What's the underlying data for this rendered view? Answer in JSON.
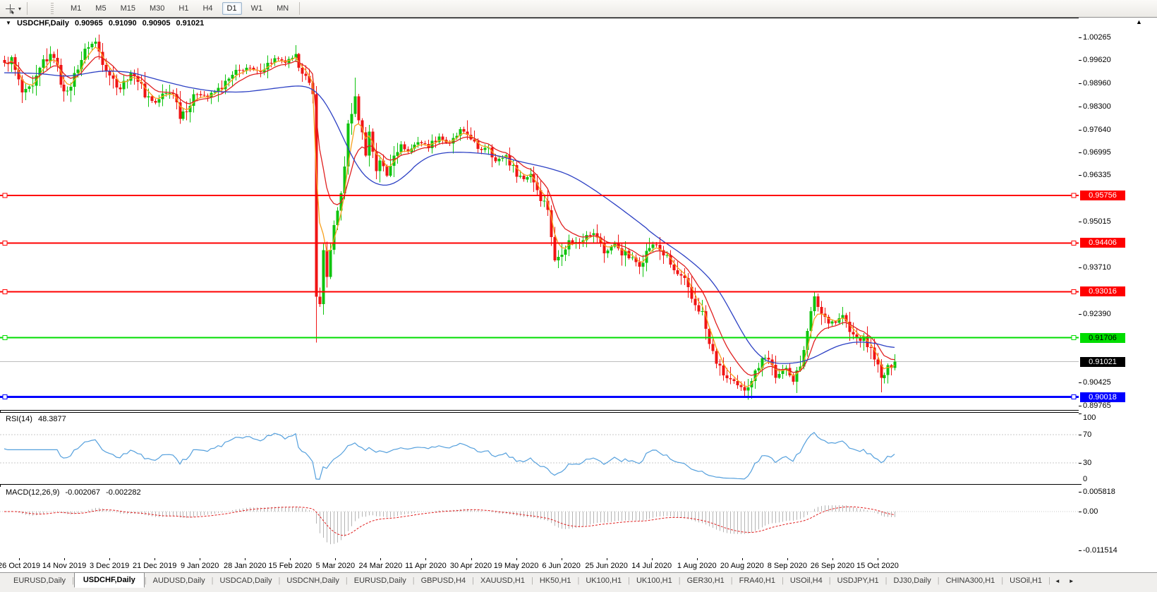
{
  "toolbar": {
    "tool_icon": "crosshair-cursor",
    "caret": "▾",
    "timeframes": [
      {
        "label": "M1"
      },
      {
        "label": "M5"
      },
      {
        "label": "M15"
      },
      {
        "label": "M30"
      },
      {
        "label": "H1"
      },
      {
        "label": "H4"
      },
      {
        "label": "D1",
        "active": true
      },
      {
        "label": "W1"
      },
      {
        "label": "MN"
      }
    ]
  },
  "symbol_info": {
    "symbol": "USDCHF,Daily",
    "open": "0.90965",
    "high": "0.91090",
    "low": "0.90905",
    "close": "0.91021",
    "title_caret": "▼"
  },
  "indicators": {
    "rsi": {
      "label": "RSI(14)",
      "value": "48.3877",
      "levels": [
        70,
        30
      ],
      "axis_labels": [
        {
          "v": 100,
          "label": "100"
        },
        {
          "v": 70,
          "label": "70"
        },
        {
          "v": 30,
          "label": "30"
        },
        {
          "v": 0,
          "label": "0"
        }
      ]
    },
    "macd": {
      "label": "MACD(12,26,9)",
      "macd_value": "-0.002067",
      "signal_value": "-0.002282",
      "axis_labels": [
        {
          "v": 0.005818,
          "label": "0.005818"
        },
        {
          "v": 0,
          "label": "0.00"
        },
        {
          "v": -0.011514,
          "label": "-0.011514"
        }
      ]
    }
  },
  "chart_data": {
    "type": "candlestick",
    "symbol": "USDCHF",
    "timeframe": "Daily",
    "grid": false,
    "x_dates": [
      "26 Oct 2019",
      "14 Nov 2019",
      "3 Dec 2019",
      "21 Dec 2019",
      "9 Jan 2020",
      "28 Jan 2020",
      "15 Feb 2020",
      "5 Mar 2020",
      "24 Mar 2020",
      "11 Apr 2020",
      "30 Apr 2020",
      "19 May 2020",
      "6 Jun 2020",
      "25 Jun 2020",
      "14 Jul 2020",
      "1 Aug 2020",
      "20 Aug 2020",
      "8 Sep 2020",
      "26 Sep 2020",
      "15 Oct 2020"
    ],
    "price_range": {
      "max": 1.00808,
      "min": 0.89647
    },
    "price_axis_ticks": [
      {
        "v": 1.00265,
        "label": "1.00265"
      },
      {
        "v": 0.9962,
        "label": "0.99620"
      },
      {
        "v": 0.9896,
        "label": "0.98960"
      },
      {
        "v": 0.983,
        "label": "0.98300"
      },
      {
        "v": 0.9764,
        "label": "0.97640"
      },
      {
        "v": 0.96995,
        "label": "0.96995"
      },
      {
        "v": 0.96335,
        "label": "0.96335"
      },
      {
        "v": 0.95015,
        "label": "0.95015"
      },
      {
        "v": 0.9371,
        "label": "0.93710"
      },
      {
        "v": 0.9239,
        "label": "0.92390"
      },
      {
        "v": 0.90425,
        "label": "0.90425"
      },
      {
        "v": 0.89765,
        "label": "0.89765"
      }
    ],
    "price_badges": [
      {
        "v": 0.95756,
        "label": "0.95756",
        "bg": "#ff0000",
        "fg": "#ffffff"
      },
      {
        "v": 0.94406,
        "label": "0.94406",
        "bg": "#ff0000",
        "fg": "#ffffff"
      },
      {
        "v": 0.93016,
        "label": "0.93016",
        "bg": "#ff0000",
        "fg": "#ffffff"
      },
      {
        "v": 0.91706,
        "label": "0.91706",
        "bg": "#00dd00",
        "fg": "#000000"
      },
      {
        "v": 0.91021,
        "label": "0.91021",
        "bg": "#000000",
        "fg": "#ffffff",
        "current": true
      },
      {
        "v": 0.90018,
        "label": "0.90018",
        "bg": "#0000ff",
        "fg": "#ffffff"
      }
    ],
    "hlines": [
      {
        "price": 0.95756,
        "color": "#ff0000",
        "width": 2
      },
      {
        "price": 0.94406,
        "color": "#ff0000",
        "width": 2
      },
      {
        "price": 0.93016,
        "color": "#ff0000",
        "width": 2
      },
      {
        "price": 0.91706,
        "color": "#00dd00",
        "width": 2
      },
      {
        "price": 0.90018,
        "color": "#0000ff",
        "width": 3
      }
    ],
    "current_price": 0.91021,
    "candle_count": 255,
    "close_keyframes": [
      [
        0,
        0.995
      ],
      [
        2,
        0.9962
      ],
      [
        5,
        0.9868
      ],
      [
        8,
        0.988
      ],
      [
        11,
        0.996
      ],
      [
        14,
        0.9978
      ],
      [
        16,
        0.99
      ],
      [
        18,
        0.9868
      ],
      [
        21,
        0.9945
      ],
      [
        24,
        1.0005
      ],
      [
        26,
        1.0012
      ],
      [
        28,
        0.996
      ],
      [
        31,
        0.9905
      ],
      [
        33,
        0.988
      ],
      [
        35,
        0.9915
      ],
      [
        37,
        0.9925
      ],
      [
        40,
        0.9865
      ],
      [
        43,
        0.984
      ],
      [
        45,
        0.9862
      ],
      [
        48,
        0.9872
      ],
      [
        50,
        0.9806
      ],
      [
        53,
        0.9836
      ],
      [
        55,
        0.987
      ],
      [
        58,
        0.9856
      ],
      [
        60,
        0.987
      ],
      [
        63,
        0.9895
      ],
      [
        66,
        0.9925
      ],
      [
        69,
        0.994
      ],
      [
        72,
        0.9928
      ],
      [
        75,
        0.995
      ],
      [
        77,
        0.9965
      ],
      [
        80,
        0.9955
      ],
      [
        83,
        0.997
      ],
      [
        85,
        0.9935
      ],
      [
        88,
        0.986
      ],
      [
        89,
        0.93
      ],
      [
        90,
        0.926
      ],
      [
        91,
        0.942
      ],
      [
        92,
        0.935
      ],
      [
        94,
        0.948
      ],
      [
        95,
        0.953
      ],
      [
        97,
        0.965
      ],
      [
        98,
        0.978
      ],
      [
        100,
        0.985
      ],
      [
        101,
        0.98
      ],
      [
        103,
        0.97
      ],
      [
        104,
        0.9755
      ],
      [
        106,
        0.965
      ],
      [
        107,
        0.968
      ],
      [
        109,
        0.9632
      ],
      [
        111,
        0.97
      ],
      [
        113,
        0.972
      ],
      [
        115,
        0.97
      ],
      [
        118,
        0.973
      ],
      [
        121,
        0.9716
      ],
      [
        124,
        0.9745
      ],
      [
        127,
        0.972
      ],
      [
        130,
        0.976
      ],
      [
        133,
        0.9745
      ],
      [
        135,
        0.97
      ],
      [
        138,
        0.972
      ],
      [
        140,
        0.9672
      ],
      [
        143,
        0.969
      ],
      [
        145,
        0.9652
      ],
      [
        148,
        0.9622
      ],
      [
        150,
        0.964
      ],
      [
        153,
        0.9572
      ],
      [
        155,
        0.954
      ],
      [
        157,
        0.9385
      ],
      [
        159,
        0.942
      ],
      [
        161,
        0.9445
      ],
      [
        164,
        0.944
      ],
      [
        166,
        0.947
      ],
      [
        169,
        0.946
      ],
      [
        171,
        0.9412
      ],
      [
        174,
        0.944
      ],
      [
        176,
        0.9416
      ],
      [
        179,
        0.9392
      ],
      [
        181,
        0.938
      ],
      [
        184,
        0.943
      ],
      [
        186,
        0.9436
      ],
      [
        189,
        0.9396
      ],
      [
        191,
        0.936
      ],
      [
        194,
        0.933
      ],
      [
        196,
        0.928
      ],
      [
        199,
        0.924
      ],
      [
        201,
        0.915
      ],
      [
        204,
        0.908
      ],
      [
        206,
        0.9055
      ],
      [
        209,
        0.903
      ],
      [
        211,
        0.9025
      ],
      [
        214,
        0.907
      ],
      [
        216,
        0.912
      ],
      [
        219,
        0.91
      ],
      [
        220,
        0.905
      ],
      [
        223,
        0.909
      ],
      [
        225,
        0.9045
      ],
      [
        227,
        0.909
      ],
      [
        229,
        0.92
      ],
      [
        231,
        0.928
      ],
      [
        233,
        0.924
      ],
      [
        235,
        0.922
      ],
      [
        237,
        0.9215
      ],
      [
        239,
        0.9235
      ],
      [
        241,
        0.9185
      ],
      [
        243,
        0.917
      ],
      [
        245,
        0.9165
      ],
      [
        248,
        0.912
      ],
      [
        250,
        0.905
      ],
      [
        252,
        0.908
      ],
      [
        253,
        0.9095
      ],
      [
        254,
        0.91021
      ]
    ],
    "wick_overrides": [
      [
        26,
        "h",
        1.0026
      ],
      [
        89,
        "l",
        0.9157
      ],
      [
        100,
        "h",
        0.9912
      ],
      [
        211,
        "l",
        0.8999
      ],
      [
        231,
        "h",
        0.93
      ],
      [
        250,
        "l",
        0.9015
      ]
    ],
    "moving_averages": [
      {
        "name": "fast",
        "color": "#f7a11e",
        "type": "ema",
        "period": 4
      },
      {
        "name": "medium",
        "color": "#e02020",
        "type": "ema",
        "period": 10
      },
      {
        "name": "slow",
        "color": "#2d41c4",
        "type": "keyframes",
        "points": [
          [
            0,
            0.9926
          ],
          [
            10,
            0.9924
          ],
          [
            18,
            0.9914
          ],
          [
            28,
            0.9932
          ],
          [
            36,
            0.9928
          ],
          [
            44,
            0.9905
          ],
          [
            52,
            0.9885
          ],
          [
            60,
            0.9872
          ],
          [
            68,
            0.987
          ],
          [
            76,
            0.988
          ],
          [
            84,
            0.989
          ],
          [
            88,
            0.9885
          ],
          [
            91,
            0.9855
          ],
          [
            94,
            0.98
          ],
          [
            97,
            0.9735
          ],
          [
            100,
            0.9665
          ],
          [
            103,
            0.9625
          ],
          [
            106,
            0.9607
          ],
          [
            109,
            0.96
          ],
          [
            112,
            0.9612
          ],
          [
            116,
            0.9648
          ],
          [
            119,
            0.9678
          ],
          [
            123,
            0.9695
          ],
          [
            128,
            0.97
          ],
          [
            134,
            0.9698
          ],
          [
            140,
            0.9692
          ],
          [
            147,
            0.9672
          ],
          [
            154,
            0.9658
          ],
          [
            161,
            0.9637
          ],
          [
            167,
            0.9601
          ],
          [
            174,
            0.9552
          ],
          [
            181,
            0.9499
          ],
          [
            187,
            0.9452
          ],
          [
            194,
            0.9405
          ],
          [
            201,
            0.9345
          ],
          [
            205,
            0.9288
          ],
          [
            209,
            0.921
          ],
          [
            213,
            0.914
          ],
          [
            217,
            0.9102
          ],
          [
            221,
            0.9096
          ],
          [
            226,
            0.9098
          ],
          [
            230,
            0.9108
          ],
          [
            234,
            0.913
          ],
          [
            238,
            0.915
          ],
          [
            243,
            0.916
          ],
          [
            248,
            0.9156
          ],
          [
            252,
            0.9146
          ],
          [
            254,
            0.9136
          ]
        ]
      }
    ],
    "colors": {
      "bull": "#0fc40f",
      "bear": "#f01414",
      "price_line": "#bdbdbd",
      "rsi_line": "#55a0dd",
      "level_dash": "#c9c9c9",
      "macd_hist": "#b4b4b4",
      "macd_signal": "#e02020"
    },
    "rsi_period": 14,
    "macd_params": [
      12,
      26,
      9
    ]
  },
  "tabs": {
    "items": [
      {
        "label": "EURUSD,Daily"
      },
      {
        "label": "USDCHF,Daily",
        "active": true
      },
      {
        "label": "AUDUSD,Daily"
      },
      {
        "label": "USDCAD,Daily"
      },
      {
        "label": "USDCNH,Daily"
      },
      {
        "label": "EURUSD,Daily"
      },
      {
        "label": "GBPUSD,H4"
      },
      {
        "label": "XAUUSD,H1"
      },
      {
        "label": "HK50,H1"
      },
      {
        "label": "UK100,H1"
      },
      {
        "label": "UK100,H1"
      },
      {
        "label": "GER30,H1"
      },
      {
        "label": "FRA40,H1"
      },
      {
        "label": "USOil,H4"
      },
      {
        "label": "USDJPY,H1"
      },
      {
        "label": "DJ30,Daily"
      },
      {
        "label": "CHINA300,H1"
      },
      {
        "label": "USOil,H1"
      }
    ],
    "scroll_left": "◄",
    "scroll_right": "►"
  },
  "corner_marker": "▲"
}
